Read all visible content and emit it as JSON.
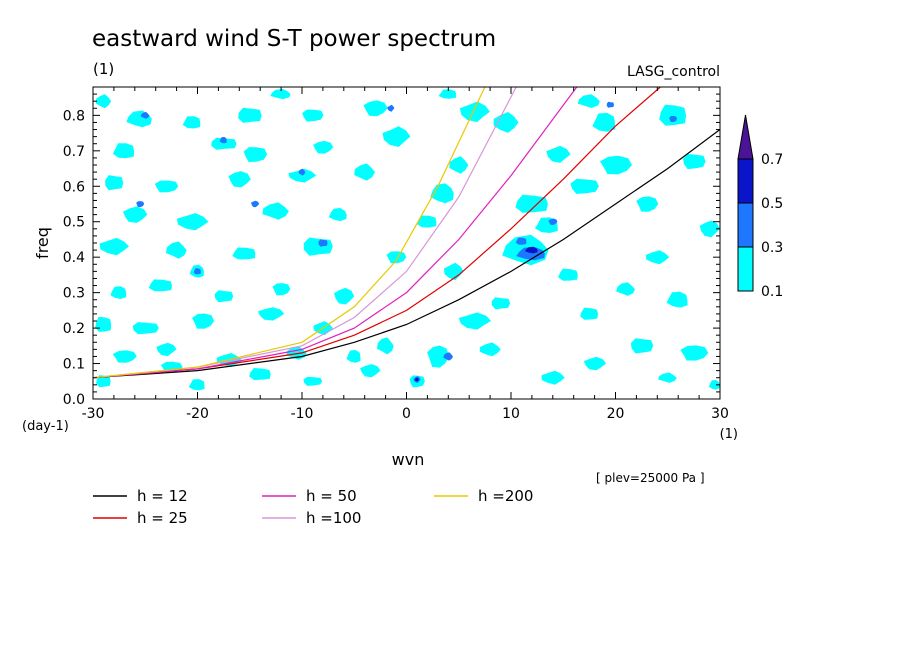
{
  "chart_data": {
    "type": "contour",
    "title": "eastward wind S-T power spectrum",
    "subtitle_left": "(1)",
    "subtitle_right": "LASG_control",
    "xlabel": "wvn",
    "ylabel": "freq",
    "x_unit": "(1)",
    "y_unit": "(day-1)",
    "xlim": [
      -30,
      30
    ],
    "ylim": [
      0,
      0.88
    ],
    "x_ticks": [
      -30,
      -20,
      -10,
      0,
      10,
      20,
      30
    ],
    "x_tick_labels": [
      "-30",
      "-20",
      "-10",
      "0",
      "10",
      "20",
      "30"
    ],
    "y_ticks": [
      0,
      0.1,
      0.2,
      0.3,
      0.4,
      0.5,
      0.6,
      0.7,
      0.8
    ],
    "y_tick_labels": [
      "0.0",
      "0.1",
      "0.2",
      "0.3",
      "0.4",
      "0.5",
      "0.6",
      "0.7",
      "0.8"
    ],
    "note": "[ plev=25000 Pa ]",
    "colorbar": {
      "levels": [
        "0.1",
        "0.3",
        "0.5",
        "0.7"
      ],
      "colors": [
        "#00ffff",
        "#1e78ff",
        "#0a14c8",
        "#4b1496"
      ]
    },
    "series": [
      {
        "name": "h = 12",
        "color": "#000000",
        "x": [
          -30,
          -20,
          -10,
          -5,
          0,
          5,
          10,
          15,
          20,
          25,
          30
        ],
        "y": [
          0.06,
          0.08,
          0.12,
          0.16,
          0.21,
          0.28,
          0.36,
          0.45,
          0.55,
          0.65,
          0.76
        ]
      },
      {
        "name": "h = 25",
        "color": "#e00000",
        "x": [
          -30,
          -20,
          -10,
          -5,
          0,
          5,
          10,
          15,
          20,
          24.3
        ],
        "y": [
          0.06,
          0.085,
          0.13,
          0.18,
          0.25,
          0.35,
          0.48,
          0.62,
          0.77,
          0.88
        ]
      },
      {
        "name": "h = 50",
        "color": "#e020c0",
        "x": [
          -30,
          -20,
          -10,
          -5,
          0,
          5,
          10,
          16.3
        ],
        "y": [
          0.06,
          0.085,
          0.14,
          0.2,
          0.3,
          0.45,
          0.63,
          0.88
        ]
      },
      {
        "name": "h =100",
        "color": "#d896d8",
        "x": [
          -30,
          -20,
          -10,
          -5,
          0,
          5,
          10.5
        ],
        "y": [
          0.06,
          0.09,
          0.15,
          0.23,
          0.36,
          0.57,
          0.88
        ]
      },
      {
        "name": "h =200",
        "color": "#e8c800",
        "x": [
          -30,
          -20,
          -10,
          -5,
          -1,
          3,
          7.5
        ],
        "y": [
          0.06,
          0.09,
          0.16,
          0.26,
          0.39,
          0.6,
          0.88
        ]
      }
    ],
    "blobs": [
      [
        -20,
        0.04,
        0.9,
        0.018,
        0
      ],
      [
        -14,
        0.07,
        1.2,
        0.02,
        0
      ],
      [
        -9,
        0.05,
        1.0,
        0.015,
        0
      ],
      [
        -27,
        0.12,
        1.2,
        0.02,
        0
      ],
      [
        -23,
        0.14,
        1.0,
        0.02,
        0
      ],
      [
        -17,
        0.11,
        1.3,
        0.02,
        0
      ],
      [
        -10.5,
        0.13,
        1.1,
        0.02,
        0
      ],
      [
        -5,
        0.12,
        0.8,
        0.02,
        0
      ],
      [
        -29,
        0.21,
        0.9,
        0.025,
        0
      ],
      [
        -25,
        0.2,
        1.4,
        0.02,
        0
      ],
      [
        -19.5,
        0.22,
        1.1,
        0.025,
        0
      ],
      [
        -13,
        0.24,
        1.3,
        0.02,
        0
      ],
      [
        -8,
        0.2,
        1.0,
        0.02,
        0
      ],
      [
        -2,
        0.15,
        0.9,
        0.025,
        0
      ],
      [
        -27.5,
        0.3,
        0.9,
        0.02,
        0
      ],
      [
        -23.5,
        0.32,
        1.3,
        0.02,
        0
      ],
      [
        -17.5,
        0.29,
        1.0,
        0.02,
        0
      ],
      [
        -12,
        0.31,
        0.9,
        0.02,
        0
      ],
      [
        -6,
        0.29,
        1.0,
        0.025,
        0
      ],
      [
        -28,
        0.43,
        1.5,
        0.025,
        0
      ],
      [
        -22,
        0.42,
        1.1,
        0.025,
        0
      ],
      [
        -20,
        0.36,
        0.8,
        0.02,
        0
      ],
      [
        -15.5,
        0.41,
        1.3,
        0.02,
        0
      ],
      [
        -8.5,
        0.43,
        1.6,
        0.03,
        0
      ],
      [
        -1,
        0.4,
        1.0,
        0.02,
        0
      ],
      [
        -26,
        0.52,
        1.2,
        0.025,
        0
      ],
      [
        -20.5,
        0.5,
        1.6,
        0.025,
        0
      ],
      [
        -12.5,
        0.53,
        1.4,
        0.025,
        0
      ],
      [
        -6.5,
        0.52,
        1.0,
        0.02,
        0
      ],
      [
        2,
        0.5,
        1.1,
        0.02,
        0
      ],
      [
        -28,
        0.61,
        1.0,
        0.025,
        0
      ],
      [
        -23,
        0.6,
        1.2,
        0.02,
        0
      ],
      [
        -16,
        0.62,
        1.1,
        0.025,
        0
      ],
      [
        -10,
        0.63,
        1.4,
        0.02,
        0
      ],
      [
        -4,
        0.64,
        1.1,
        0.025,
        0
      ],
      [
        3.5,
        0.58,
        1.3,
        0.03,
        0
      ],
      [
        -27,
        0.7,
        1.2,
        0.025,
        0
      ],
      [
        -17.5,
        0.72,
        1.4,
        0.02,
        0
      ],
      [
        -14.5,
        0.69,
        1.2,
        0.025,
        0
      ],
      [
        -8,
        0.71,
        1.0,
        0.02,
        0
      ],
      [
        -1,
        0.74,
        1.4,
        0.03,
        0
      ],
      [
        5,
        0.66,
        1.0,
        0.025,
        0
      ],
      [
        -25.5,
        0.79,
        1.4,
        0.025,
        0
      ],
      [
        -20.5,
        0.78,
        1.0,
        0.02,
        0
      ],
      [
        -15,
        0.8,
        1.3,
        0.025,
        0
      ],
      [
        -9,
        0.8,
        1.1,
        0.02,
        0
      ],
      [
        -3,
        0.82,
        1.2,
        0.025,
        0
      ],
      [
        6.5,
        0.81,
        1.5,
        0.03,
        0
      ],
      [
        -29,
        0.84,
        0.8,
        0.02,
        0
      ],
      [
        -12,
        0.86,
        1.1,
        0.015,
        0
      ],
      [
        4,
        0.86,
        1.0,
        0.015,
        0
      ],
      [
        -29,
        0.05,
        0.8,
        0.02,
        0
      ],
      [
        1,
        0.05,
        0.8,
        0.02,
        0
      ],
      [
        3,
        0.12,
        1.1,
        0.035,
        0
      ],
      [
        6.5,
        0.22,
        1.6,
        0.025,
        0
      ],
      [
        8,
        0.14,
        1.1,
        0.02,
        0
      ],
      [
        11.5,
        0.42,
        2.5,
        0.045,
        0
      ],
      [
        13.5,
        0.49,
        1.3,
        0.025,
        0
      ],
      [
        12,
        0.55,
        1.8,
        0.03,
        0
      ],
      [
        17,
        0.6,
        1.5,
        0.025,
        0
      ],
      [
        20,
        0.66,
        1.6,
        0.03,
        0
      ],
      [
        14.5,
        0.69,
        1.2,
        0.025,
        0
      ],
      [
        9.5,
        0.78,
        1.3,
        0.03,
        0
      ],
      [
        17.5,
        0.84,
        1.2,
        0.02,
        0
      ],
      [
        19,
        0.78,
        1.3,
        0.03,
        0
      ],
      [
        25.5,
        0.8,
        1.5,
        0.035,
        0
      ],
      [
        27.5,
        0.67,
        1.2,
        0.025,
        0
      ],
      [
        23,
        0.55,
        1.1,
        0.025,
        0
      ],
      [
        29,
        0.48,
        1.0,
        0.025,
        0
      ],
      [
        24,
        0.4,
        1.2,
        0.02,
        0
      ],
      [
        21,
        0.31,
        1.0,
        0.02,
        0
      ],
      [
        26,
        0.28,
        1.2,
        0.025,
        0
      ],
      [
        17.5,
        0.24,
        1.0,
        0.02,
        0
      ],
      [
        22.5,
        0.15,
        1.2,
        0.025,
        0
      ],
      [
        27.5,
        0.13,
        1.4,
        0.025,
        0
      ],
      [
        18,
        0.1,
        1.1,
        0.02,
        0
      ],
      [
        14,
        0.06,
        1.2,
        0.02,
        0
      ],
      [
        25,
        0.06,
        1.0,
        0.015,
        0
      ],
      [
        29.5,
        0.04,
        0.6,
        0.015,
        0
      ],
      [
        15.5,
        0.35,
        1.1,
        0.02,
        0
      ],
      [
        9,
        0.27,
        1.0,
        0.02,
        0
      ],
      [
        -22.5,
        0.09,
        1.1,
        0.018,
        0
      ],
      [
        -3.5,
        0.08,
        1.0,
        0.02,
        0
      ],
      [
        4.5,
        0.36,
        1.0,
        0.025,
        0
      ],
      [
        -25,
        0.8,
        0.45,
        0.01,
        1
      ],
      [
        -17.5,
        0.73,
        0.4,
        0.01,
        1
      ],
      [
        -20,
        0.36,
        0.4,
        0.01,
        1
      ],
      [
        -8,
        0.44,
        0.5,
        0.012,
        1
      ],
      [
        -25.5,
        0.55,
        0.4,
        0.01,
        1
      ],
      [
        -14.5,
        0.55,
        0.4,
        0.01,
        1
      ],
      [
        1,
        0.055,
        0.35,
        0.01,
        1
      ],
      [
        4,
        0.12,
        0.5,
        0.012,
        1
      ],
      [
        12,
        0.41,
        1.6,
        0.02,
        1
      ],
      [
        11,
        0.445,
        0.6,
        0.012,
        1
      ],
      [
        19.5,
        0.83,
        0.4,
        0.01,
        1
      ],
      [
        25.5,
        0.79,
        0.4,
        0.01,
        1
      ],
      [
        14,
        0.5,
        0.45,
        0.01,
        1
      ],
      [
        -1.5,
        0.82,
        0.35,
        0.01,
        1
      ],
      [
        -10,
        0.64,
        0.35,
        0.01,
        1
      ],
      [
        12,
        0.42,
        0.7,
        0.01,
        2
      ],
      [
        1,
        0.055,
        0.2,
        0.006,
        2
      ]
    ]
  }
}
